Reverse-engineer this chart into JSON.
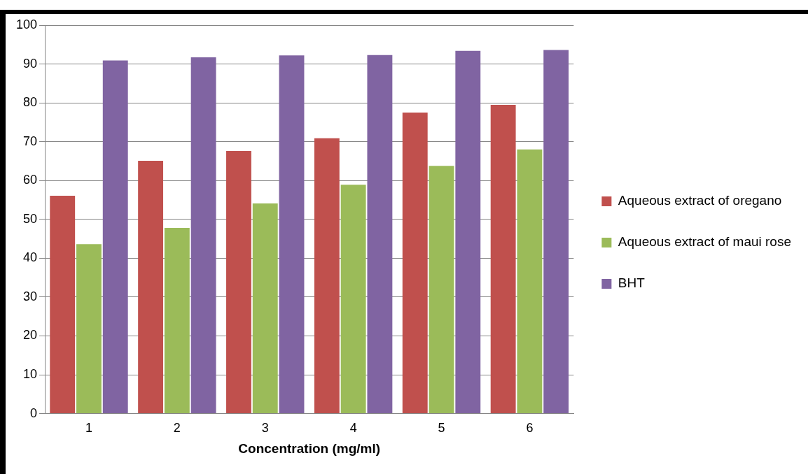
{
  "chart_data": {
    "type": "bar",
    "xlabel": "Concentration (mg/ml)",
    "categories": [
      "1",
      "2",
      "3",
      "4",
      "5",
      "6"
    ],
    "series": [
      {
        "name": "Aqueous extract of oregano",
        "color": "#c0504d",
        "values": [
          56.1,
          65.1,
          67.6,
          70.9,
          77.5,
          79.5
        ]
      },
      {
        "name": "Aqueous extract of maui rose",
        "color": "#9bbb59",
        "values": [
          43.6,
          47.8,
          54.1,
          58.9,
          63.8,
          68.0
        ]
      },
      {
        "name": "BHT",
        "color": "#8064a2",
        "values": [
          90.9,
          91.7,
          92.2,
          92.3,
          93.4,
          93.6
        ]
      }
    ],
    "ylim": [
      0,
      100
    ],
    "yticks": [
      0,
      10,
      20,
      30,
      40,
      50,
      60,
      70,
      80,
      90,
      100
    ],
    "grid": "y",
    "legend": "right"
  }
}
